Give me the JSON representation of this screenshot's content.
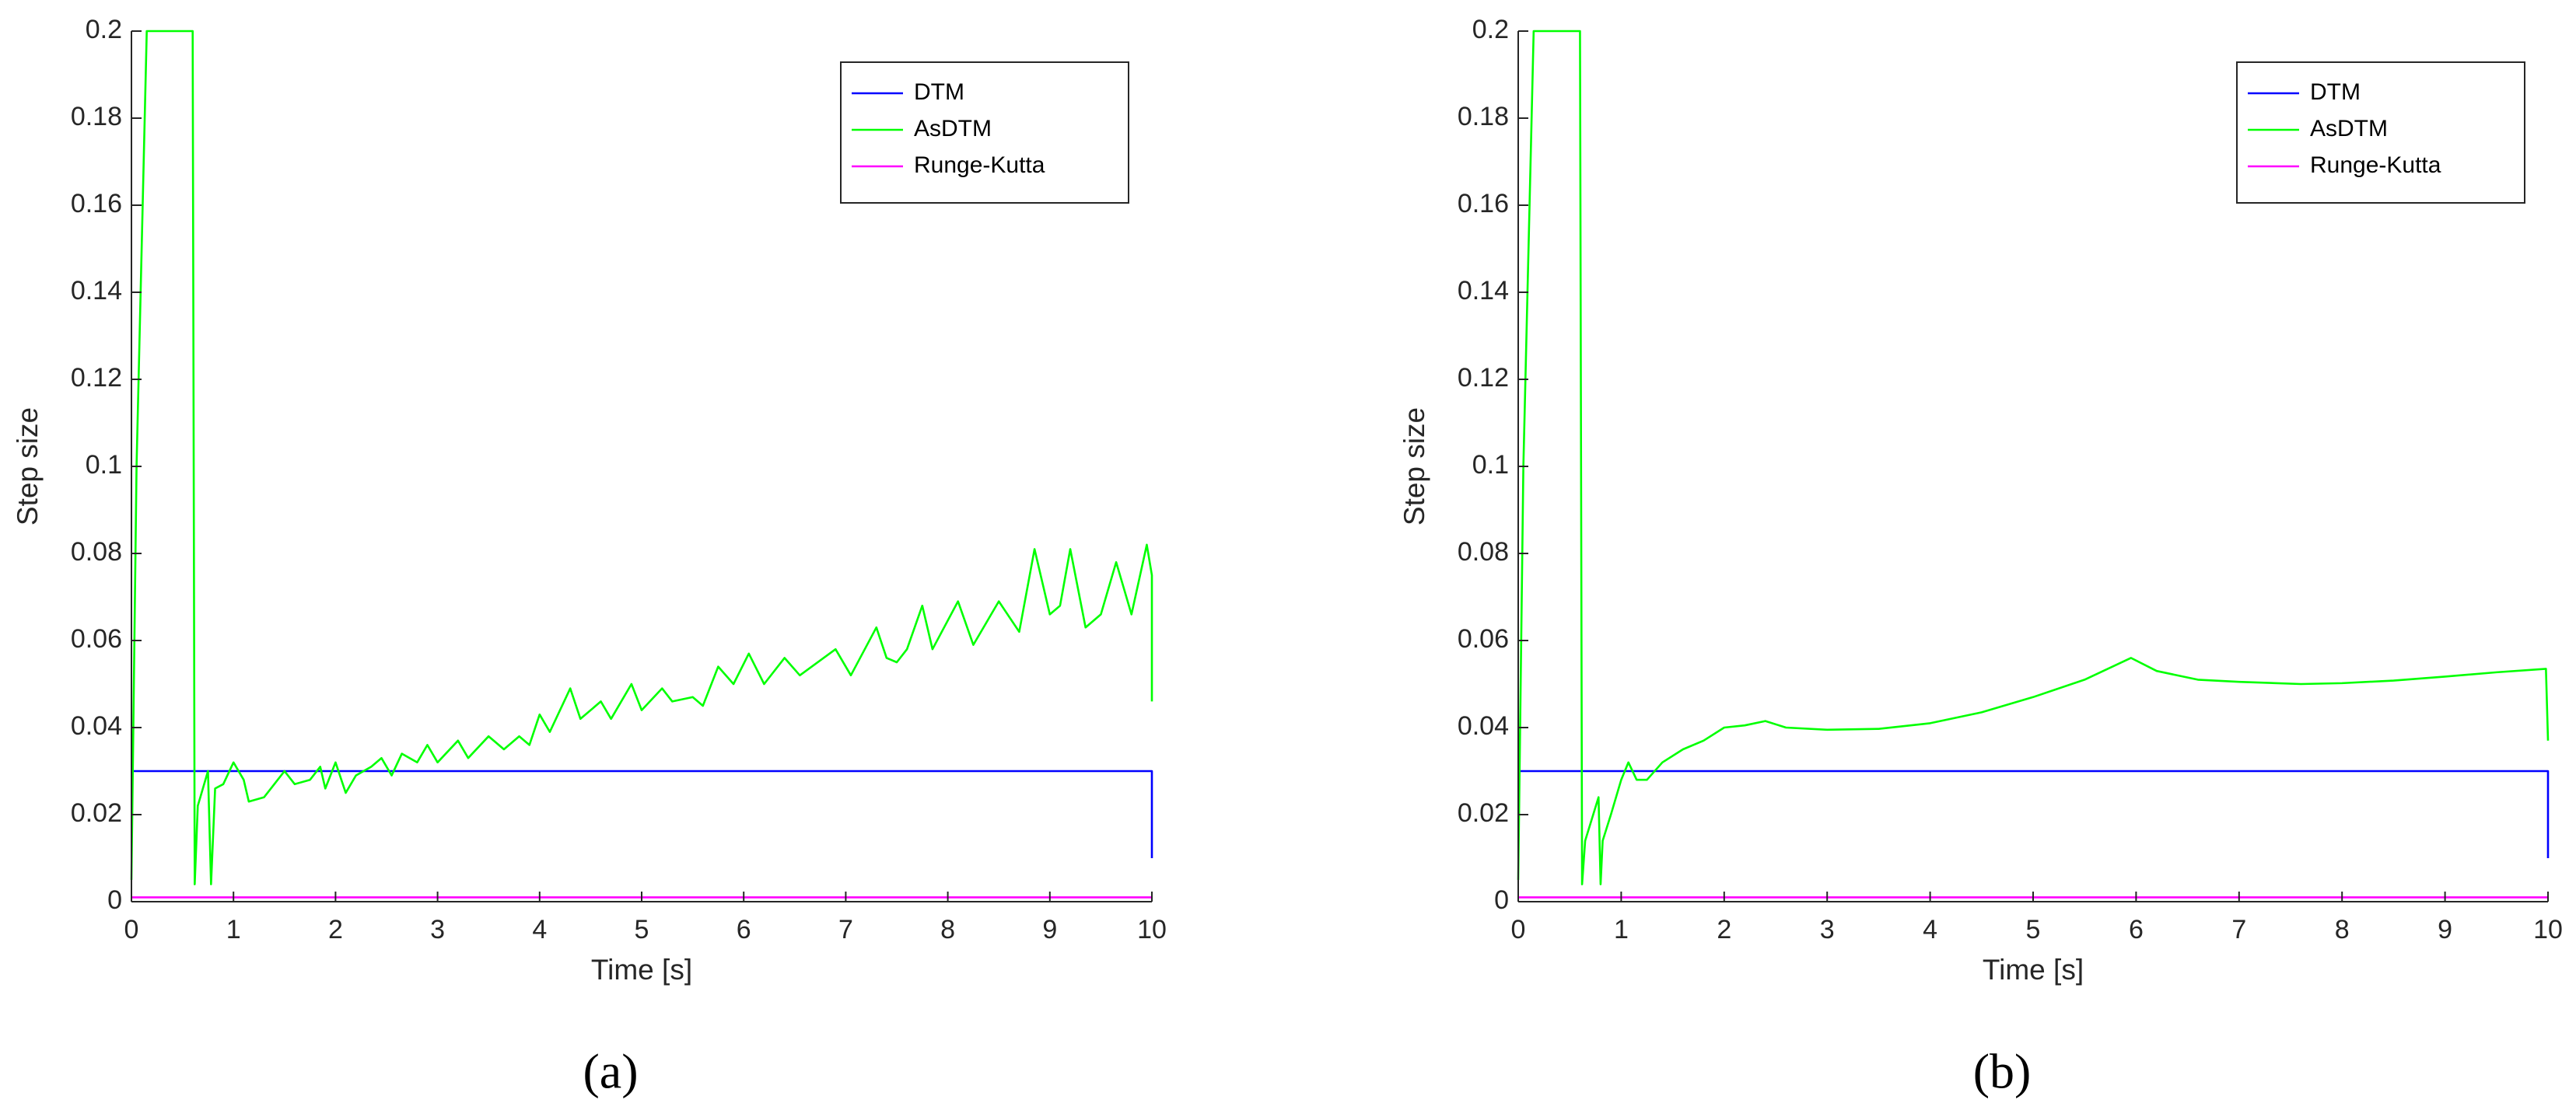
{
  "chart_data": [
    {
      "type": "line",
      "xlabel": "Time [s]",
      "ylabel": "Step size",
      "caption": "(a)",
      "xlim": [
        0,
        10
      ],
      "ylim": [
        0,
        0.2
      ],
      "xticks": [
        0,
        1,
        2,
        3,
        4,
        5,
        6,
        7,
        8,
        9,
        10
      ],
      "yticks": [
        0,
        0.02,
        0.04,
        0.06,
        0.08,
        0.1,
        0.12,
        0.14,
        0.16,
        0.18,
        0.2
      ],
      "legend": "upper right",
      "series": [
        {
          "name": "DTM",
          "color": "#0000ff",
          "x": [
            0,
            10,
            10
          ],
          "values": [
            0.03,
            0.03,
            0.01
          ]
        },
        {
          "name": "AsDTM",
          "color": "#00ff00",
          "x": [
            0,
            0.05,
            0.15,
            0.6,
            0.62,
            0.65,
            0.75,
            0.78,
            0.82,
            0.9,
            1.0,
            1.1,
            1.15,
            1.3,
            1.4,
            1.5,
            1.6,
            1.75,
            1.85,
            1.9,
            2.0,
            2.1,
            2.2,
            2.35,
            2.45,
            2.55,
            2.65,
            2.8,
            2.9,
            3.0,
            3.2,
            3.3,
            3.5,
            3.65,
            3.8,
            3.9,
            4.0,
            4.1,
            4.3,
            4.4,
            4.6,
            4.7,
            4.9,
            5.0,
            5.2,
            5.3,
            5.5,
            5.6,
            5.75,
            5.9,
            6.05,
            6.2,
            6.4,
            6.55,
            6.9,
            7.05,
            7.3,
            7.4,
            7.5,
            7.6,
            7.75,
            7.85,
            8.1,
            8.25,
            8.5,
            8.7,
            8.85,
            9.0,
            9.1,
            9.2,
            9.35,
            9.5,
            9.65,
            9.8,
            9.95,
            10.0,
            10.0
          ],
          "values": [
            0.005,
            0.1,
            0.2,
            0.2,
            0.004,
            0.022,
            0.03,
            0.004,
            0.026,
            0.027,
            0.032,
            0.028,
            0.023,
            0.024,
            0.027,
            0.03,
            0.027,
            0.028,
            0.031,
            0.026,
            0.032,
            0.025,
            0.029,
            0.031,
            0.033,
            0.029,
            0.034,
            0.032,
            0.036,
            0.032,
            0.037,
            0.033,
            0.038,
            0.035,
            0.038,
            0.036,
            0.043,
            0.039,
            0.049,
            0.042,
            0.046,
            0.042,
            0.05,
            0.044,
            0.049,
            0.046,
            0.047,
            0.045,
            0.054,
            0.05,
            0.057,
            0.05,
            0.056,
            0.052,
            0.058,
            0.052,
            0.063,
            0.056,
            0.055,
            0.058,
            0.068,
            0.058,
            0.069,
            0.059,
            0.069,
            0.062,
            0.081,
            0.066,
            0.068,
            0.081,
            0.063,
            0.066,
            0.078,
            0.066,
            0.082,
            0.075,
            0.046
          ]
        },
        {
          "name": "Runge-Kutta",
          "color": "#ff00ff",
          "x": [
            0,
            10
          ],
          "values": [
            0.001,
            0.001
          ]
        }
      ]
    },
    {
      "type": "line",
      "xlabel": "Time [s]",
      "ylabel": "Step size",
      "caption": "(b)",
      "xlim": [
        0,
        10
      ],
      "ylim": [
        0,
        0.2
      ],
      "xticks": [
        0,
        1,
        2,
        3,
        4,
        5,
        6,
        7,
        8,
        9,
        10
      ],
      "yticks": [
        0,
        0.02,
        0.04,
        0.06,
        0.08,
        0.1,
        0.12,
        0.14,
        0.16,
        0.18,
        0.2
      ],
      "legend": "upper right",
      "series": [
        {
          "name": "DTM",
          "color": "#0000ff",
          "x": [
            0,
            10,
            10
          ],
          "values": [
            0.03,
            0.03,
            0.01
          ]
        },
        {
          "name": "AsDTM",
          "color": "#00ff00",
          "x": [
            0,
            0.05,
            0.15,
            0.6,
            0.62,
            0.65,
            0.78,
            0.8,
            0.82,
            0.9,
            1.0,
            1.07,
            1.15,
            1.25,
            1.4,
            1.6,
            1.8,
            2.0,
            2.2,
            2.4,
            2.6,
            3.0,
            3.5,
            4.0,
            4.5,
            5.0,
            5.5,
            5.95,
            6.2,
            6.6,
            7.0,
            7.6,
            8.0,
            8.5,
            9.0,
            9.5,
            9.98,
            10.0
          ],
          "values": [
            0.005,
            0.1,
            0.2,
            0.2,
            0.004,
            0.014,
            0.024,
            0.004,
            0.014,
            0.02,
            0.028,
            0.032,
            0.028,
            0.028,
            0.032,
            0.035,
            0.037,
            0.04,
            0.0405,
            0.0415,
            0.04,
            0.0395,
            0.0397,
            0.041,
            0.0435,
            0.047,
            0.051,
            0.056,
            0.053,
            0.051,
            0.0505,
            0.05,
            0.0502,
            0.0508,
            0.0517,
            0.0527,
            0.0535,
            0.037
          ]
        },
        {
          "name": "Runge-Kutta",
          "color": "#ff00ff",
          "x": [
            0,
            10
          ],
          "values": [
            0.001,
            0.001
          ]
        }
      ]
    }
  ]
}
